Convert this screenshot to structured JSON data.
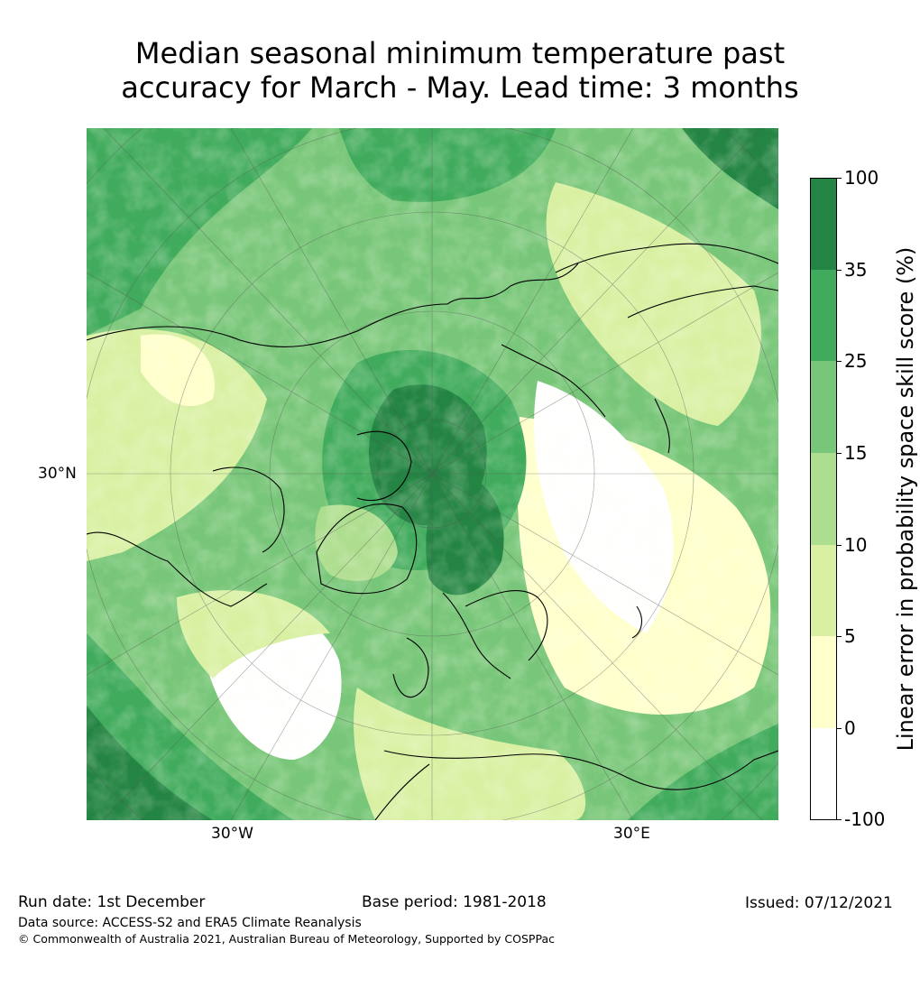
{
  "title_line1": "Median seasonal minimum temperature past",
  "title_line2": "accuracy for March - May. Lead time: 3 months",
  "map": {
    "projection": "north-polar",
    "lat_label": "30°N",
    "lon_labels": [
      "30°W",
      "30°E"
    ]
  },
  "colorbar": {
    "title": "Linear error in probability space skill score (%)",
    "ticks": [
      "100",
      "35",
      "25",
      "15",
      "10",
      "5",
      "0",
      "-100"
    ],
    "bins": [
      {
        "range": "35 to 100",
        "color": "#238443"
      },
      {
        "range": "25 to 35",
        "color": "#41ab5d"
      },
      {
        "range": "15 to 25",
        "color": "#78c679"
      },
      {
        "range": "10 to 15",
        "color": "#addd8e"
      },
      {
        "range": "5 to 10",
        "color": "#d9f0a3"
      },
      {
        "range": "0 to 5",
        "color": "#ffffcc"
      },
      {
        "range": "-100 to 0",
        "color": "#ffffff"
      }
    ]
  },
  "footer": {
    "run_date": "Run date: 1st December",
    "base_period": "Base period: 1981-2018",
    "issued": "Issued: 07/12/2021",
    "data_source": "Data source: ACCESS-S2 and ERA5 Climate Reanalysis",
    "copyright": "© Commonwealth of Australia 2021, Australian Bureau of Meteorology, Supported by COSPPac"
  }
}
